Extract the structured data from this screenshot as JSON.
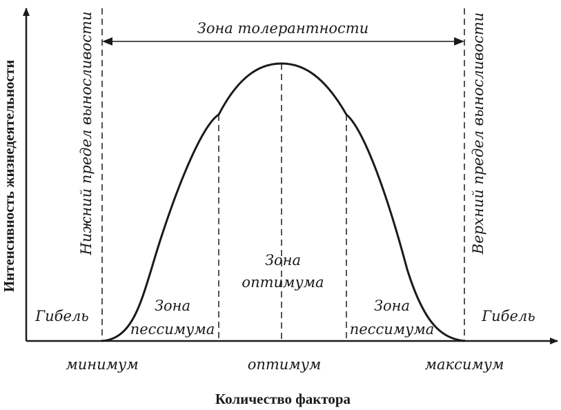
{
  "diagram": {
    "y_axis_label": "Интенсивность жизнедеятельности",
    "x_axis_label": "Количество фактора",
    "tolerance_zone": "Зона толерантности",
    "lower_limit": "Нижний предел выносливости",
    "upper_limit": "Верхний предел выносливости",
    "death_left": "Гибель",
    "death_right": "Гибель",
    "pessimum_left": [
      "Зона",
      "пессимума"
    ],
    "optimum_zone": [
      "Зона",
      "оптимума"
    ],
    "pessimum_right": [
      "Зона",
      "пессимума"
    ],
    "x_ticks": [
      "минимум",
      "оптимум",
      "максимум"
    ]
  },
  "colors": {
    "ink": "#1a1a1a",
    "background": "#ffffff"
  }
}
